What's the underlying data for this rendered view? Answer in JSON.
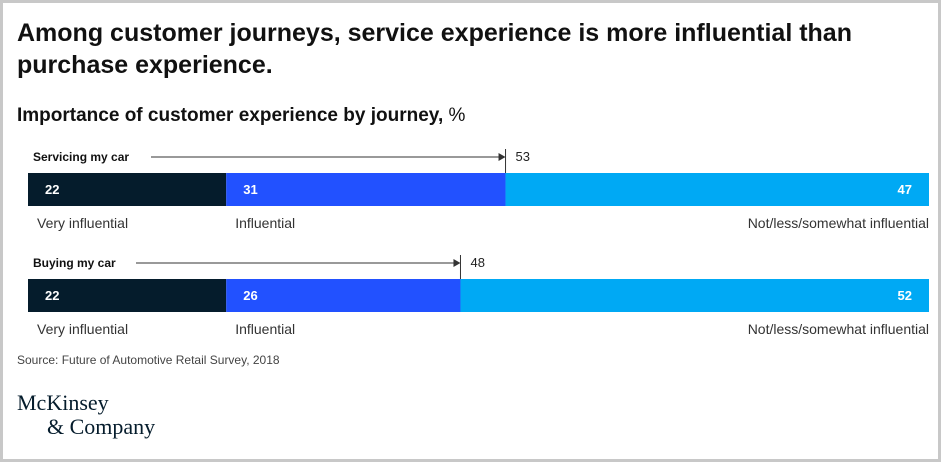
{
  "title": "Among customer journeys, service experience is more influential than purchase experience.",
  "subtitle": {
    "text": "Importance of customer experience by journey,",
    "unit": "%"
  },
  "chart_data": {
    "type": "bar",
    "orientation": "horizontal-stacked",
    "categories": [
      "Servicing my car",
      "Buying my car"
    ],
    "series": [
      {
        "name": "Very influential",
        "values": [
          22,
          22
        ],
        "color": "#051c2c",
        "label_align": "left"
      },
      {
        "name": "Influential",
        "values": [
          31,
          26
        ],
        "color": "#2251ff",
        "label_align": "left"
      },
      {
        "name": "Not/less/somewhat influential",
        "values": [
          47,
          52
        ],
        "color": "#00a9f4",
        "label_align": "right"
      }
    ],
    "annotations": [
      53,
      48
    ],
    "xlim": [
      0,
      100
    ]
  },
  "source": "Source: Future of Automotive Retail Survey, 2018",
  "logo": {
    "line1": "McKinsey",
    "line2": "& Company"
  }
}
